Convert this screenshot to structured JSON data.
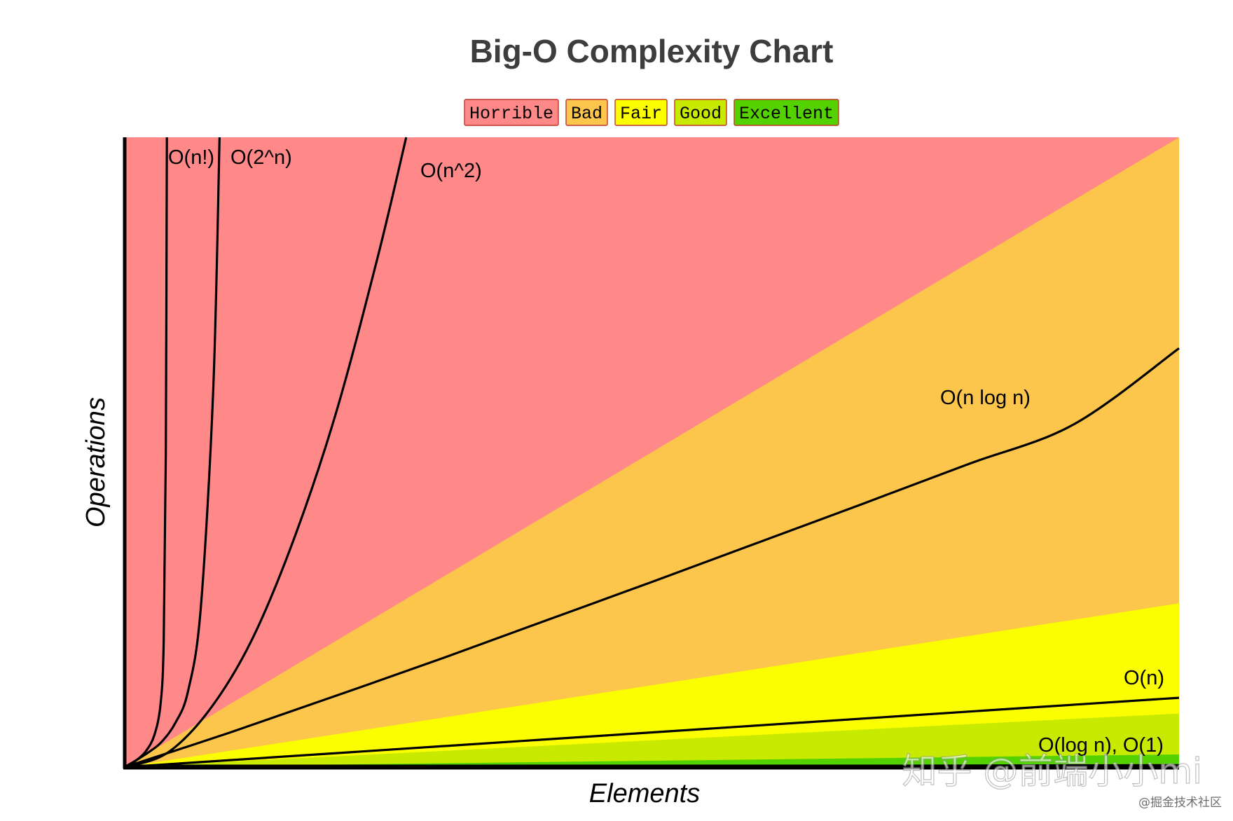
{
  "chart_data": {
    "type": "area",
    "title": "Big-O Complexity Chart",
    "xlabel": "Elements",
    "ylabel": "Operations",
    "xlim": [
      0,
      100
    ],
    "ylim": [
      0,
      100
    ],
    "grid": false,
    "legend_placement": "top-center",
    "legend": [
      {
        "label": "Horrible",
        "color": "#ff8989"
      },
      {
        "label": "Bad",
        "color": "#fcc54b"
      },
      {
        "label": "Fair",
        "color": "#fbfe00"
      },
      {
        "label": "Good",
        "color": "#c7ea00"
      },
      {
        "label": "Excellent",
        "color": "#53d200"
      }
    ],
    "regions": [
      {
        "name": "Horrible",
        "color": "#ff8989",
        "upper_edge_end_y": 100
      },
      {
        "name": "Bad",
        "color": "#fcc54b",
        "upper_edge_end_y": 100
      },
      {
        "name": "Fair",
        "color": "#fbfe00",
        "upper_edge_end_y": 26
      },
      {
        "name": "Good",
        "color": "#c7ea00",
        "upper_edge_end_y": 8.5
      },
      {
        "name": "Excellent",
        "color": "#53d200",
        "upper_edge_end_y": 2
      }
    ],
    "series": [
      {
        "name": "O(n!)",
        "label": "O(n!)",
        "function": "factorial",
        "x": [
          0,
          0.6,
          1.2,
          2,
          2.8,
          3.4,
          3.7,
          3.9,
          4.0
        ],
        "y": [
          0,
          0.5,
          1.2,
          2.5,
          5,
          10,
          20,
          50,
          100
        ]
      },
      {
        "name": "O(2^n)",
        "label": "O(2^n)",
        "function": "exponential",
        "x": [
          0,
          1.2,
          2.4,
          3.5,
          4.8,
          6.0,
          7.2,
          8.4,
          9.0
        ],
        "y": [
          0,
          1.2,
          2.5,
          4,
          7,
          12,
          25,
          60,
          100
        ]
      },
      {
        "name": "O(n^2)",
        "label": "O(n^2)",
        "function": "quadratic",
        "x": [
          0,
          4,
          8,
          12,
          16,
          20,
          24,
          26.7
        ],
        "y": [
          0,
          2.2,
          9,
          20,
          36,
          56,
          81,
          100
        ]
      },
      {
        "name": "O(n log n)",
        "label": "O(n log n)",
        "function": "linearithmic",
        "x": [
          0,
          10,
          20,
          30,
          40,
          50,
          60,
          70,
          80,
          90,
          100
        ],
        "y": [
          0,
          5.5,
          11.3,
          17.2,
          23.3,
          29.4,
          35.6,
          41.8,
          48.1,
          54.4,
          66.5
        ]
      },
      {
        "name": "O(n)",
        "label": "O(n)",
        "function": "linear",
        "x": [
          0,
          100
        ],
        "y": [
          0,
          11
        ]
      },
      {
        "name": "O(log n), O(1)",
        "label": "O(log n), O(1)",
        "function": "logarithmic-constant",
        "x": [
          0,
          100
        ],
        "y": [
          0,
          0.3
        ]
      }
    ]
  },
  "watermark": {
    "main": "知乎 @前端小小mi",
    "sub": "@掘金技术社区"
  }
}
